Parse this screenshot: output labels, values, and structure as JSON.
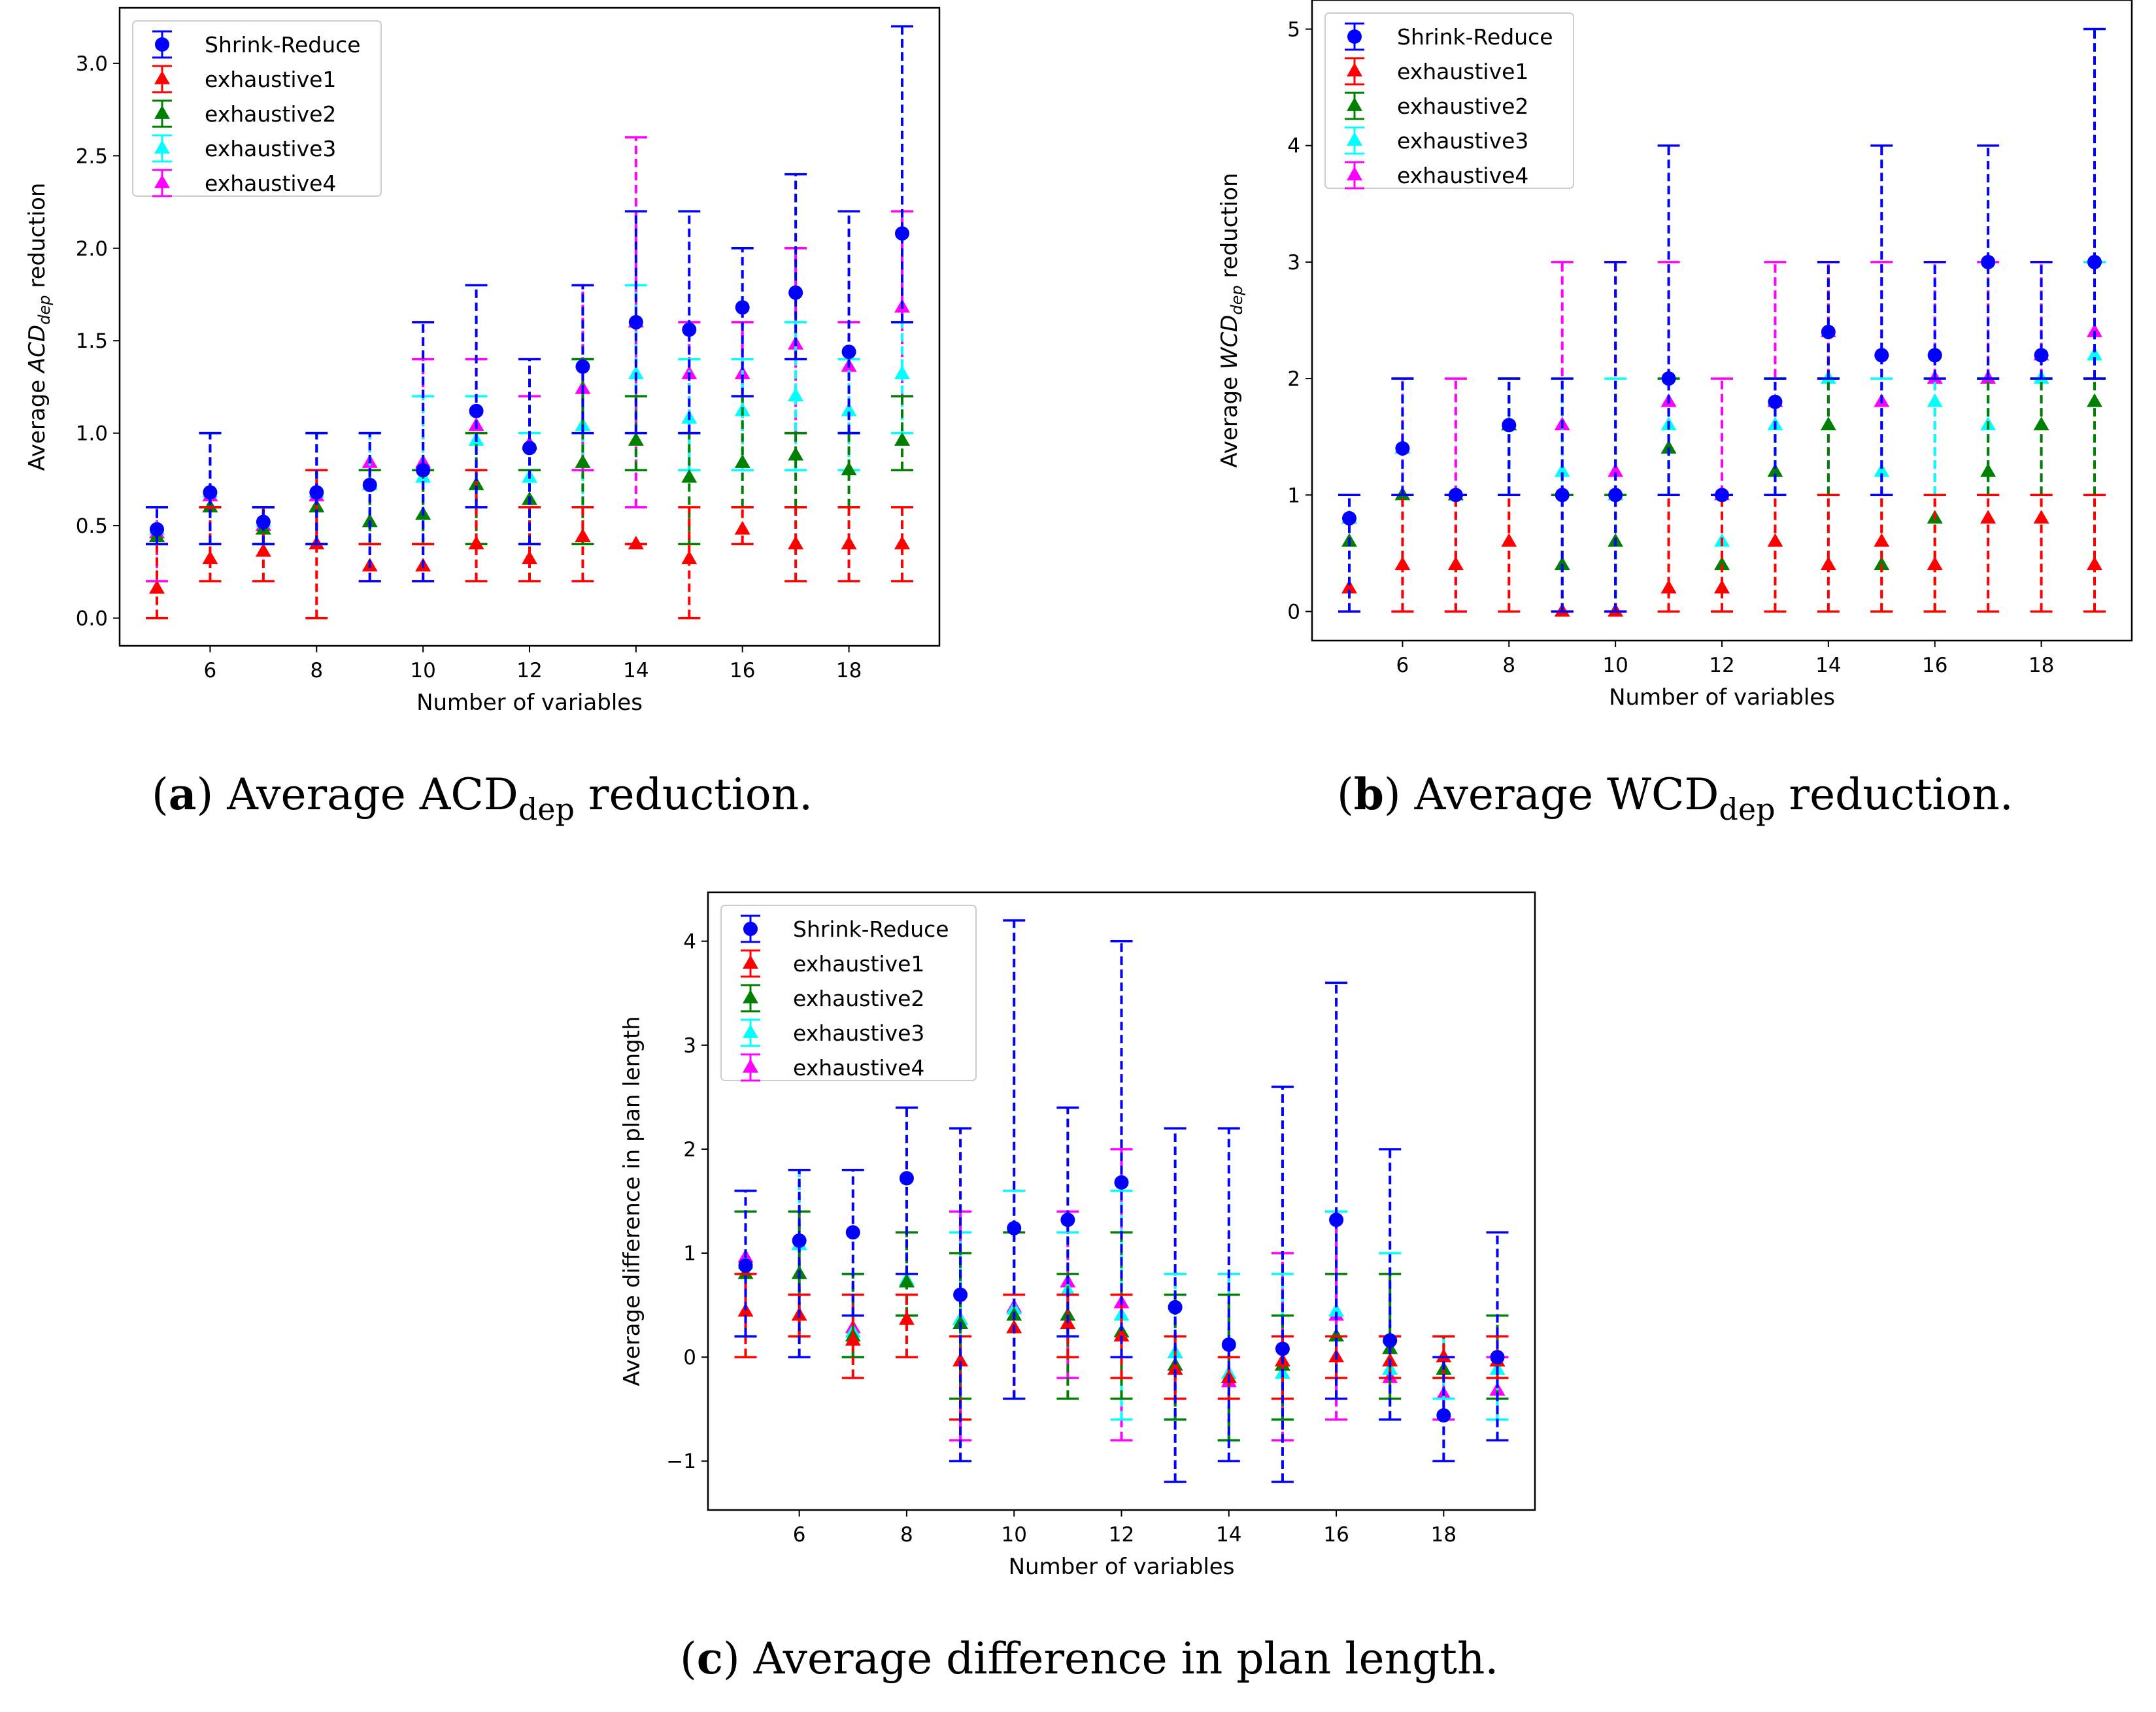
{
  "colors": {
    "series": [
      "#0000ff",
      "#ff0000",
      "#008000",
      "#00ffff",
      "#ff00ff"
    ]
  },
  "chart_data": [
    {
      "id": "a",
      "type": "scatter",
      "title": "",
      "xlabel": "Number of variables",
      "ylabel": "Average ACDdep reduction",
      "ylabel_parts": {
        "pre": "Average ",
        "main": "ACD",
        "sub": "dep",
        "post": " reduction"
      },
      "xlim": [
        4.3,
        19.7
      ],
      "ylim": [
        -0.15,
        3.3
      ],
      "xticks": [
        6,
        8,
        10,
        12,
        14,
        16,
        18
      ],
      "xtick_labels": [
        "6",
        "8",
        "10",
        "12",
        "14",
        "16",
        "18"
      ],
      "yticks": [
        0.0,
        0.5,
        1.0,
        1.5,
        2.0,
        2.5,
        3.0
      ],
      "ytick_labels": [
        "0.0",
        "0.5",
        "1.0",
        "1.5",
        "2.0",
        "2.5",
        "3.0"
      ],
      "legend_position": "top-left",
      "x": [
        5,
        6,
        7,
        8,
        9,
        10,
        11,
        12,
        13,
        14,
        15,
        16,
        17,
        18,
        19
      ],
      "caption": {
        "label": "a",
        "pre": ") Average ",
        "main": "ACD",
        "sub": "dep",
        "post": " reduction."
      },
      "series": [
        {
          "name": "Shrink-Reduce",
          "marker": "circle",
          "values": [
            0.48,
            0.68,
            0.52,
            0.68,
            0.72,
            0.8,
            1.12,
            0.92,
            1.36,
            1.6,
            1.56,
            1.68,
            1.76,
            1.44,
            2.08
          ],
          "lower": [
            0.4,
            0.4,
            0.4,
            0.4,
            0.2,
            0.2,
            0.6,
            0.4,
            1.0,
            1.0,
            1.0,
            1.2,
            1.4,
            1.0,
            1.6
          ],
          "upper": [
            0.6,
            1.0,
            0.6,
            1.0,
            1.0,
            1.6,
            1.8,
            1.4,
            1.8,
            2.2,
            2.2,
            2.0,
            2.4,
            2.2,
            3.2
          ]
        },
        {
          "name": "exhaustive1",
          "marker": "triangle",
          "values": [
            0.16,
            0.32,
            0.36,
            0.4,
            0.28,
            0.28,
            0.4,
            0.32,
            0.44,
            0.4,
            0.32,
            0.48,
            0.4,
            0.4,
            0.4
          ],
          "lower": [
            0.0,
            0.2,
            0.2,
            0.0,
            0.2,
            0.2,
            0.2,
            0.2,
            0.2,
            0.4,
            0.0,
            0.4,
            0.2,
            0.2,
            0.2
          ],
          "upper": [
            0.4,
            0.6,
            0.6,
            0.8,
            0.4,
            0.4,
            0.8,
            0.6,
            0.6,
            0.4,
            0.6,
            0.6,
            0.6,
            0.6,
            0.6
          ]
        },
        {
          "name": "exhaustive2",
          "marker": "triangle",
          "values": [
            0.44,
            0.6,
            0.48,
            0.6,
            0.52,
            0.56,
            0.72,
            0.64,
            0.84,
            0.96,
            0.76,
            0.84,
            0.88,
            0.8,
            0.96
          ],
          "lower": [
            0.4,
            0.6,
            0.4,
            0.4,
            0.4,
            0.4,
            0.4,
            0.4,
            0.4,
            0.8,
            0.4,
            0.6,
            0.6,
            0.6,
            0.8
          ],
          "upper": [
            0.6,
            0.6,
            0.6,
            0.8,
            0.8,
            0.8,
            1.0,
            0.8,
            1.4,
            1.2,
            1.0,
            1.2,
            1.0,
            1.0,
            1.2
          ]
        },
        {
          "name": "exhaustive3",
          "marker": "triangle",
          "values": [
            0.48,
            0.68,
            0.52,
            0.68,
            0.72,
            0.76,
            0.96,
            0.76,
            1.04,
            1.32,
            1.08,
            1.12,
            1.2,
            1.12,
            1.32
          ],
          "lower": [
            0.4,
            0.4,
            0.4,
            0.4,
            0.4,
            0.4,
            0.6,
            0.4,
            0.6,
            0.8,
            0.8,
            0.8,
            0.8,
            0.8,
            1.0
          ],
          "upper": [
            0.6,
            1.0,
            0.6,
            1.0,
            1.0,
            1.2,
            1.2,
            1.0,
            1.4,
            1.8,
            1.4,
            1.4,
            1.6,
            1.4,
            1.6
          ]
        },
        {
          "name": "exhaustive4",
          "marker": "triangle",
          "values": [
            0.46,
            0.66,
            0.5,
            0.66,
            0.84,
            0.84,
            1.04,
            0.94,
            1.24,
            1.6,
            1.32,
            1.32,
            1.48,
            1.36,
            1.68
          ],
          "lower": [
            0.2,
            0.4,
            0.4,
            0.4,
            0.4,
            0.4,
            0.6,
            0.4,
            0.8,
            0.6,
            0.8,
            0.8,
            1.0,
            1.0,
            1.2
          ],
          "upper": [
            0.6,
            1.0,
            0.6,
            1.0,
            1.0,
            1.4,
            1.4,
            1.2,
            1.8,
            2.6,
            1.6,
            1.6,
            2.0,
            1.6,
            2.2
          ]
        }
      ]
    },
    {
      "id": "b",
      "type": "scatter",
      "title": "",
      "xlabel": "Number of variables",
      "ylabel": "Average WCDdep reduction",
      "ylabel_parts": {
        "pre": "Average ",
        "main": "WCD",
        "sub": "dep",
        "post": " reduction"
      },
      "xlim": [
        4.3,
        19.7
      ],
      "ylim": [
        -0.25,
        5.25
      ],
      "xticks": [
        6,
        8,
        10,
        12,
        14,
        16,
        18
      ],
      "xtick_labels": [
        "6",
        "8",
        "10",
        "12",
        "14",
        "16",
        "18"
      ],
      "yticks": [
        0,
        1,
        2,
        3,
        4,
        5
      ],
      "ytick_labels": [
        "0",
        "1",
        "2",
        "3",
        "4",
        "5"
      ],
      "legend_position": "top-left",
      "x": [
        5,
        6,
        7,
        8,
        9,
        10,
        11,
        12,
        13,
        14,
        15,
        16,
        17,
        18,
        19
      ],
      "caption": {
        "label": "b",
        "pre": ") Average ",
        "main": "WCD",
        "sub": "dep",
        "post": " reduction."
      },
      "series": [
        {
          "name": "Shrink-Reduce",
          "marker": "circle",
          "values": [
            0.8,
            1.4,
            1.0,
            1.6,
            1.0,
            1.0,
            2.0,
            1.0,
            1.8,
            2.4,
            2.2,
            2.2,
            3.0,
            2.2,
            3.0
          ],
          "lower": [
            0,
            1,
            1,
            1,
            0,
            0,
            1,
            1,
            1,
            2,
            1,
            2,
            2,
            2,
            2
          ],
          "upper": [
            1,
            2,
            1,
            2,
            2,
            3,
            4,
            1,
            2,
            3,
            4,
            3,
            4,
            3,
            5
          ]
        },
        {
          "name": "exhaustive1",
          "marker": "triangle",
          "values": [
            0.2,
            0.4,
            0.4,
            0.6,
            0.0,
            0.0,
            0.2,
            0.2,
            0.6,
            0.4,
            0.6,
            0.4,
            0.8,
            0.8,
            0.4
          ],
          "lower": [
            0,
            0,
            0,
            0,
            0,
            0,
            0,
            0,
            0,
            0,
            0,
            0,
            0,
            0,
            0
          ],
          "upper": [
            1,
            1,
            1,
            1,
            0,
            0,
            1,
            1,
            1,
            1,
            1,
            1,
            1,
            1,
            1
          ]
        },
        {
          "name": "exhaustive2",
          "marker": "triangle",
          "values": [
            0.6,
            1.0,
            1.0,
            1.6,
            0.4,
            0.6,
            1.4,
            0.4,
            1.2,
            1.6,
            0.4,
            0.8,
            1.2,
            1.6,
            1.8
          ],
          "lower": [
            0,
            1,
            1,
            1,
            0,
            0,
            1,
            0,
            1,
            1,
            0,
            0,
            1,
            1,
            1
          ],
          "upper": [
            1,
            1,
            1,
            2,
            1,
            1,
            2,
            1,
            2,
            2,
            1,
            1,
            2,
            2,
            2
          ]
        },
        {
          "name": "exhaustive3",
          "marker": "triangle",
          "values": [
            0.8,
            1.4,
            1.0,
            1.6,
            1.2,
            1.0,
            1.6,
            0.6,
            1.6,
            2.0,
            1.2,
            1.8,
            1.6,
            2.0,
            2.2
          ],
          "lower": [
            0,
            1,
            1,
            1,
            1,
            0,
            1,
            0,
            1,
            2,
            1,
            1,
            1,
            2,
            2
          ],
          "upper": [
            1,
            2,
            1,
            2,
            2,
            2,
            2,
            1,
            2,
            2,
            2,
            2,
            2,
            2,
            3
          ]
        },
        {
          "name": "exhaustive4",
          "marker": "triangle",
          "values": [
            0.8,
            1.4,
            1.0,
            1.6,
            1.6,
            1.2,
            1.8,
            1.0,
            1.8,
            2.4,
            1.8,
            2.0,
            2.0,
            2.2,
            2.4
          ],
          "lower": [
            0,
            0,
            0,
            1,
            0,
            0,
            1,
            0,
            1,
            1,
            1,
            1,
            1,
            1,
            2
          ],
          "upper": [
            1,
            2,
            2,
            2,
            3,
            3,
            3,
            2,
            3,
            3,
            3,
            3,
            3,
            3,
            3
          ]
        }
      ]
    },
    {
      "id": "c",
      "type": "scatter",
      "title": "",
      "xlabel": "Number of variables",
      "ylabel": "Average difference in plan length",
      "ylabel_parts": {
        "pre": "Average difference in plan length",
        "main": "",
        "sub": "",
        "post": ""
      },
      "xlim": [
        4.3,
        19.7
      ],
      "ylim": [
        -1.47,
        4.47
      ],
      "xticks": [
        6,
        8,
        10,
        12,
        14,
        16,
        18
      ],
      "xtick_labels": [
        "6",
        "8",
        "10",
        "12",
        "14",
        "16",
        "18"
      ],
      "yticks": [
        -1,
        0,
        1,
        2,
        3,
        4
      ],
      "ytick_labels": [
        "−1",
        "0",
        "1",
        "2",
        "3",
        "4"
      ],
      "legend_position": "top-left",
      "x": [
        5,
        6,
        7,
        8,
        9,
        10,
        11,
        12,
        13,
        14,
        15,
        16,
        17,
        18,
        19
      ],
      "caption": {
        "label": "c",
        "pre": ") Average difference in plan length.",
        "main": "",
        "sub": "",
        "post": ""
      },
      "series": [
        {
          "name": "Shrink-Reduce",
          "marker": "circle",
          "values": [
            0.88,
            1.12,
            1.2,
            1.72,
            0.6,
            1.24,
            1.32,
            1.68,
            0.48,
            0.12,
            0.08,
            1.32,
            0.16,
            -0.56,
            0.0
          ],
          "lower": [
            0.2,
            0.0,
            0.4,
            0.8,
            -1.0,
            -0.4,
            0.2,
            0.0,
            -1.2,
            -1.0,
            -1.2,
            -0.4,
            -0.6,
            -1.0,
            -0.8
          ],
          "upper": [
            1.6,
            1.8,
            1.8,
            2.4,
            2.2,
            4.2,
            2.4,
            4.0,
            2.2,
            2.2,
            2.6,
            3.6,
            2.0,
            0.0,
            1.2
          ]
        },
        {
          "name": "exhaustive1",
          "marker": "triangle",
          "values": [
            0.44,
            0.4,
            0.16,
            0.36,
            -0.04,
            0.28,
            0.32,
            0.2,
            -0.12,
            -0.2,
            -0.04,
            0.0,
            -0.04,
            0.0,
            -0.04
          ],
          "lower": [
            0.0,
            0.2,
            -0.2,
            0.0,
            -0.6,
            -0.4,
            0.0,
            -0.2,
            -0.4,
            -0.4,
            -0.4,
            -0.2,
            -0.2,
            -0.2,
            -0.2
          ],
          "upper": [
            0.8,
            0.6,
            0.6,
            0.6,
            0.2,
            0.6,
            0.6,
            0.6,
            0.2,
            0.0,
            0.2,
            0.2,
            0.2,
            0.2,
            0.2
          ]
        },
        {
          "name": "exhaustive2",
          "marker": "triangle",
          "values": [
            0.8,
            0.8,
            0.2,
            0.72,
            0.32,
            0.4,
            0.4,
            0.24,
            -0.08,
            -0.2,
            -0.08,
            0.2,
            0.08,
            -0.12,
            -0.04
          ],
          "lower": [
            0.2,
            0.2,
            0.0,
            0.4,
            -0.4,
            -0.4,
            -0.4,
            -0.4,
            -0.6,
            -0.8,
            -0.6,
            -0.4,
            -0.4,
            -0.2,
            -0.4
          ],
          "upper": [
            1.4,
            1.4,
            0.8,
            1.2,
            1.0,
            1.2,
            0.8,
            1.2,
            0.6,
            0.6,
            0.4,
            0.8,
            0.8,
            0.2,
            0.4
          ]
        },
        {
          "name": "exhaustive3",
          "marker": "triangle",
          "values": [
            0.9,
            1.08,
            0.24,
            0.74,
            0.36,
            0.46,
            0.64,
            0.4,
            0.04,
            -0.16,
            -0.16,
            0.44,
            -0.12,
            -0.12,
            -0.12
          ],
          "lower": [
            0.2,
            0.6,
            0.0,
            0.4,
            -0.6,
            -0.4,
            0.2,
            -0.6,
            -0.6,
            -0.8,
            -0.6,
            -0.4,
            -0.6,
            -0.4,
            -0.6
          ],
          "upper": [
            1.6,
            1.8,
            0.8,
            1.2,
            1.2,
            1.6,
            1.2,
            1.6,
            0.8,
            0.8,
            0.8,
            1.4,
            1.0,
            0.2,
            0.2
          ]
        },
        {
          "name": "exhaustive4",
          "marker": "triangle",
          "values": [
            0.96,
            1.08,
            0.28,
            0.72,
            0.36,
            0.48,
            0.72,
            0.52,
            0.04,
            -0.24,
            -0.16,
            0.4,
            -0.2,
            -0.36,
            -0.32
          ],
          "lower": [
            0.2,
            0.6,
            0.0,
            0.4,
            -0.8,
            -0.4,
            -0.2,
            -0.8,
            -0.6,
            -0.8,
            -0.8,
            -0.6,
            -0.6,
            -0.6,
            -0.6
          ],
          "upper": [
            1.6,
            1.8,
            0.8,
            1.2,
            1.4,
            1.6,
            1.4,
            2.0,
            0.8,
            0.8,
            1.0,
            1.4,
            0.2,
            0.0,
            0.0
          ]
        }
      ]
    }
  ]
}
